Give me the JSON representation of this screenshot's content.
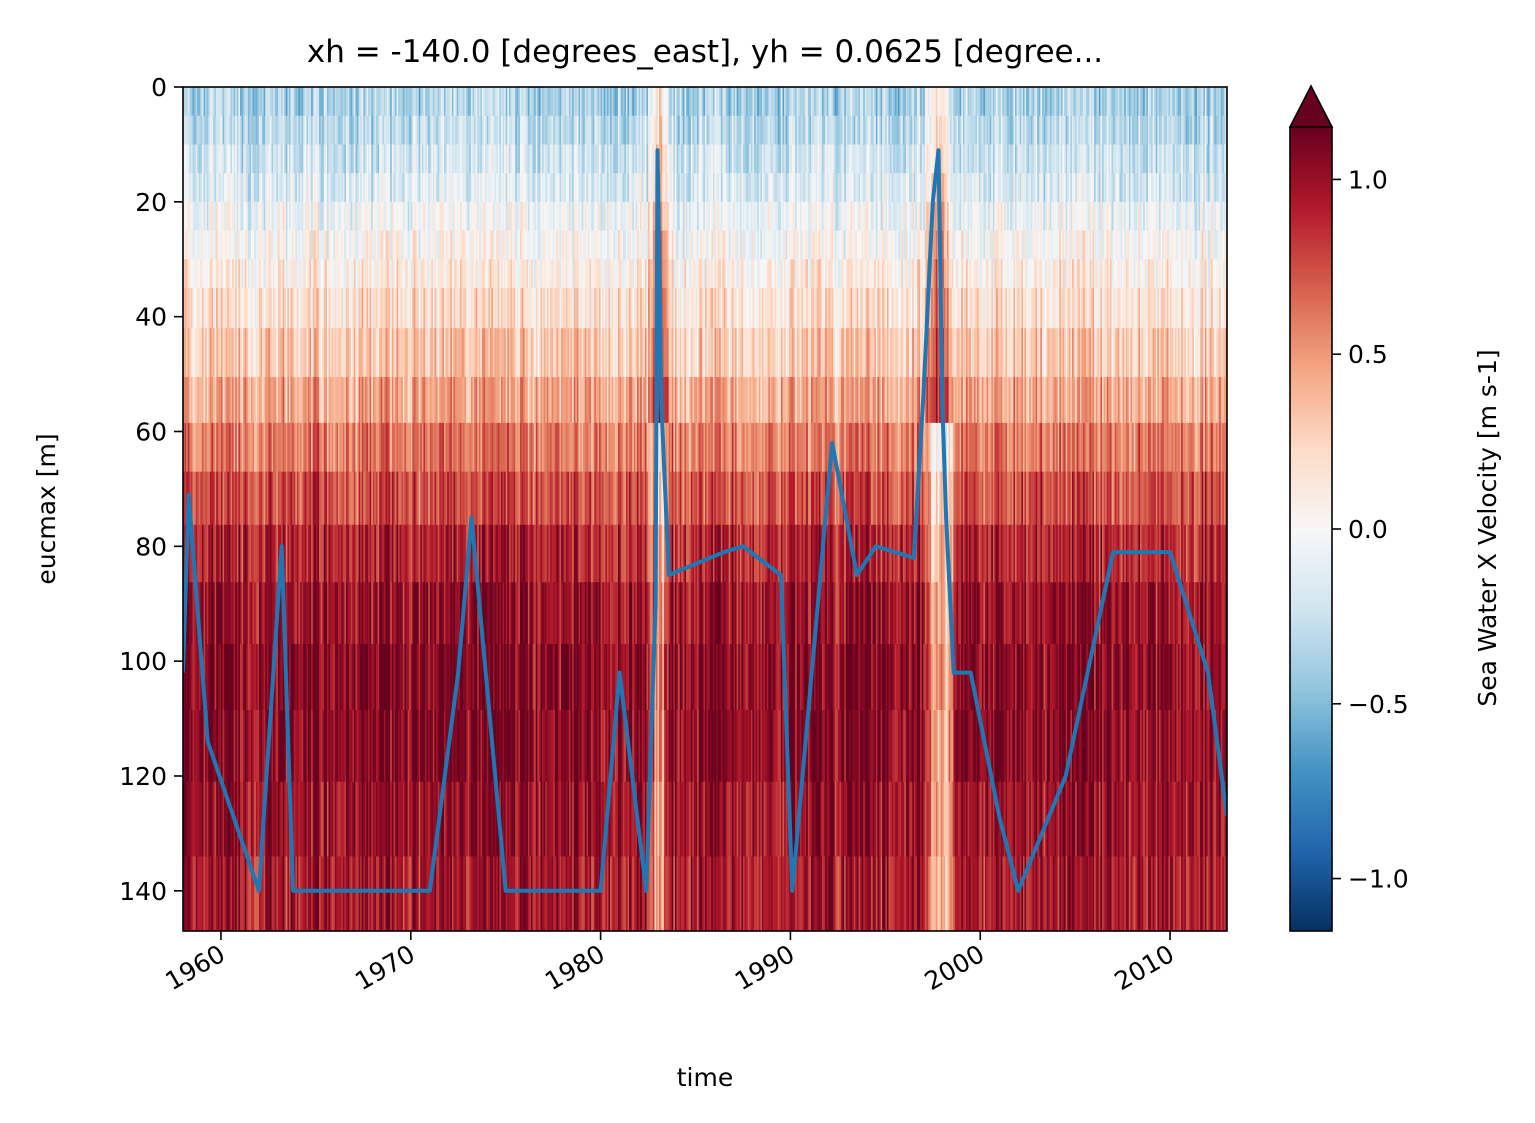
{
  "chart_data": [
    {
      "type": "heatmap",
      "title": "xh = -140.0 [degrees_east], yh = 0.0625 [degree...",
      "xlabel": "time",
      "ylabel": "eucmax [m]",
      "xlim": [
        1958.0,
        2013.0
      ],
      "ylim": [
        147,
        0
      ],
      "y_inverted": true,
      "x_ticks": [
        1960,
        1970,
        1980,
        1990,
        2000,
        2010
      ],
      "x_tick_labels": [
        "1960",
        "1970",
        "1980",
        "1990",
        "2000",
        "2010"
      ],
      "y_ticks": [
        0,
        20,
        40,
        60,
        80,
        100,
        120,
        140
      ],
      "y_tick_labels": [
        "0",
        "20",
        "40",
        "60",
        "80",
        "100",
        "120",
        "140"
      ],
      "depth_levels": [
        2.5,
        7.5,
        12.5,
        17.5,
        22.5,
        27.5,
        32.5,
        37.5,
        46.5,
        54.5,
        62.5,
        71.5,
        81.0,
        91.5,
        102.5,
        114.5,
        127.5,
        140.5
      ],
      "velocity_profile_m_s": [
        -0.35,
        -0.3,
        -0.22,
        -0.15,
        -0.05,
        0.02,
        0.1,
        0.18,
        0.3,
        0.45,
        0.6,
        0.75,
        0.9,
        1.0,
        1.05,
        1.05,
        1.0,
        0.95
      ],
      "weak_periods": [
        {
          "start": 1982.8,
          "end": 1983.3
        },
        {
          "start": 1997.4,
          "end": 1998.3
        }
      ],
      "colorbar": {
        "label": "Sea Water X Velocity [m s-1]",
        "colormap": "RdBu_r",
        "vmin": -1.15,
        "vmax": 1.15,
        "extend": "max",
        "ticks": [
          -1.0,
          -0.5,
          0.0,
          0.5,
          1.0
        ],
        "tick_labels": [
          "−1.0",
          "−0.5",
          "0.0",
          "0.5",
          "1.0"
        ]
      }
    },
    {
      "type": "line",
      "series": [
        {
          "color": "#1f77b4",
          "x": [
            1958.0,
            1958.3,
            1959.3,
            1962.0,
            1963.2,
            1963.8,
            1968.5,
            1971.0,
            1972.5,
            1973.2,
            1975.0,
            1977.5,
            1980.0,
            1981.0,
            1982.4,
            1982.9,
            1983.0,
            1983.2,
            1983.6,
            1986.5,
            1987.5,
            1989.5,
            1990.1,
            1992.2,
            1993.5,
            1994.5,
            1996.5,
            1997.0,
            1997.5,
            1997.8,
            1998.0,
            1998.2,
            1998.6,
            1999.5,
            2001.0,
            2002.0,
            2004.5,
            2007.0,
            2010.0,
            2012.0,
            2013.0
          ],
          "y": [
            102,
            71,
            114,
            140,
            80,
            140,
            140,
            140,
            102,
            75,
            140,
            140,
            140,
            102,
            140,
            90,
            11,
            55,
            85,
            81,
            80,
            85,
            140,
            62,
            85,
            80,
            82,
            54,
            20,
            11,
            55,
            75,
            102,
            102,
            127,
            140,
            120,
            81,
            81,
            102,
            127
          ]
        }
      ]
    }
  ]
}
